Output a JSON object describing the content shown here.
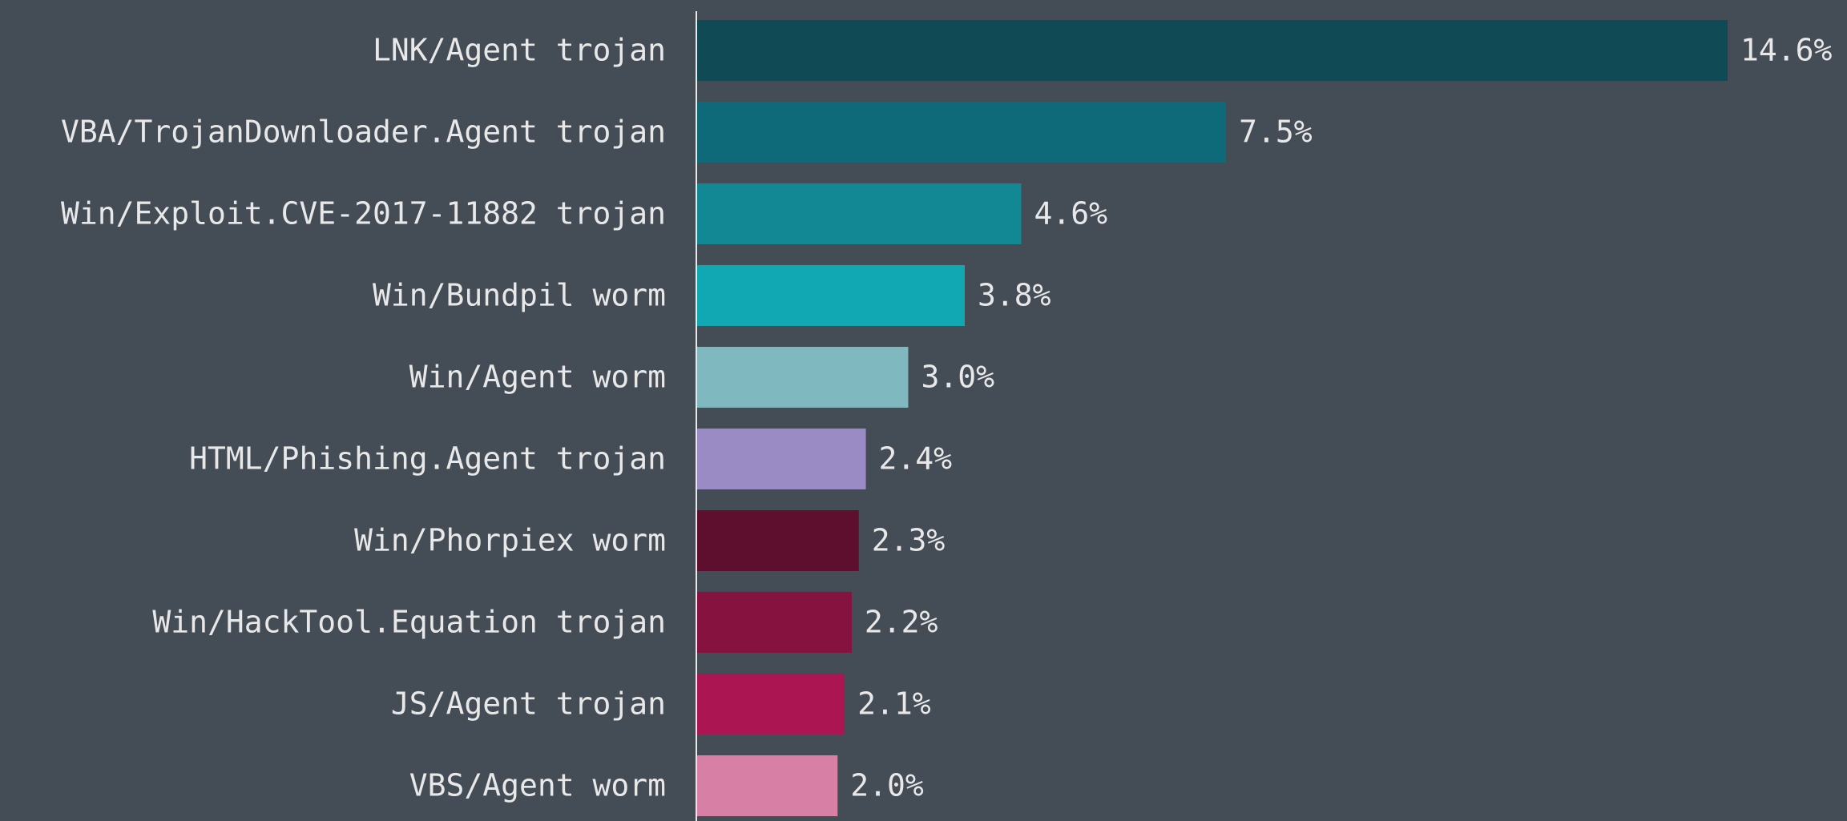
{
  "chart_data": {
    "type": "bar",
    "orientation": "horizontal",
    "categories": [
      "LNK/Agent trojan",
      "VBA/TrojanDownloader.Agent trojan",
      "Win/Exploit.CVE-2017-11882 trojan",
      "Win/Bundpil worm",
      "Win/Agent worm",
      "HTML/Phishing.Agent trojan",
      "Win/Phorpiex worm",
      "Win/HackTool.Equation trojan",
      "JS/Agent trojan",
      "VBS/Agent worm"
    ],
    "values": [
      14.6,
      7.5,
      4.6,
      3.8,
      3.0,
      2.4,
      2.3,
      2.2,
      2.1,
      2.0
    ],
    "value_labels": [
      "14.6%",
      "7.5%",
      "4.6%",
      "3.8%",
      "3.0%",
      "2.4%",
      "2.3%",
      "2.2%",
      "2.1%",
      "2.0%"
    ],
    "colors": [
      "#0f4a55",
      "#0e6a78",
      "#118893",
      "#12a8b3",
      "#7fb9bf",
      "#9b8bc4",
      "#5e0f2e",
      "#86123f",
      "#ab1652",
      "#d87fa6"
    ]
  }
}
